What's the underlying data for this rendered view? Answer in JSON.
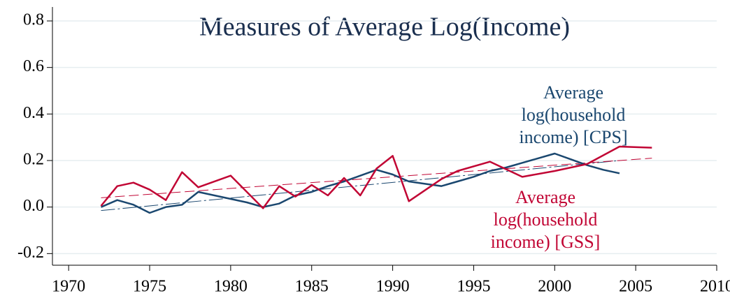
{
  "chart_data": {
    "type": "line",
    "title": "Measures of Average Log(Income)",
    "xlim": [
      1969,
      2010
    ],
    "xticks": [
      1970,
      1975,
      1980,
      1985,
      1990,
      1995,
      2000,
      2005,
      2010
    ],
    "ylim": [
      -0.25,
      0.86
    ],
    "yticks": [
      {
        "value": -0.2,
        "label": "-0.2"
      },
      {
        "value": 0,
        "label": "0.0"
      },
      {
        "value": 0.2,
        "label": "0.2"
      },
      {
        "value": 0.4,
        "label": "0.4"
      },
      {
        "value": 0.6,
        "label": "0.6"
      },
      {
        "value": 0.8,
        "label": "0.8"
      }
    ],
    "grid": true,
    "series": [
      {
        "color": "#1a476f",
        "x": [
          1972,
          1973,
          1974,
          1975,
          1976,
          1977,
          1978,
          1979,
          1980,
          1981,
          1982,
          1983,
          1984,
          1985,
          1986,
          1987,
          1988,
          1989,
          1990,
          1991,
          1992,
          1993,
          1994,
          1995,
          1996,
          1997,
          1998,
          1999,
          2000,
          2001,
          2002,
          2003,
          2004
        ],
        "values": [
          0.0,
          0.03,
          0.01,
          -0.025,
          0.0,
          0.01,
          0.065,
          0.05,
          0.035,
          0.02,
          0.0,
          0.015,
          0.05,
          0.065,
          0.09,
          0.11,
          0.135,
          0.16,
          0.14,
          0.11,
          0.1,
          0.09,
          0.11,
          0.13,
          0.155,
          0.17,
          0.19,
          0.21,
          0.23,
          0.205,
          0.18,
          0.16,
          0.145
        ]
      },
      {
        "color": "#c10534",
        "x": [
          1972,
          1973,
          1974,
          1975,
          1976,
          1977,
          1978,
          1980,
          1982,
          1983,
          1984,
          1985,
          1986,
          1987,
          1988,
          1989,
          1990,
          1991,
          1993,
          1994,
          1996,
          1998,
          2000,
          2002,
          2004,
          2006
        ],
        "values": [
          0.005,
          0.09,
          0.105,
          0.075,
          0.03,
          0.15,
          0.085,
          0.135,
          -0.005,
          0.09,
          0.045,
          0.095,
          0.05,
          0.125,
          0.05,
          0.165,
          0.22,
          0.025,
          0.12,
          0.155,
          0.195,
          0.13,
          0.155,
          0.185,
          0.26,
          0.255
        ]
      }
    ],
    "trend_lines": [
      {
        "color": "#1a476f",
        "x": [
          1972,
          2004
        ],
        "values": [
          -0.015,
          0.2
        ]
      },
      {
        "color": "#c10534",
        "x": [
          1972,
          2006
        ],
        "values": [
          0.04,
          0.21
        ]
      }
    ],
    "annotations": [
      {
        "color": "#1a476f",
        "lines": [
          "Average",
          "log(household",
          "income) [CPS]"
        ]
      },
      {
        "color": "#c10534",
        "lines": [
          "Average",
          "log(household",
          "income) [GSS]"
        ]
      }
    ]
  }
}
